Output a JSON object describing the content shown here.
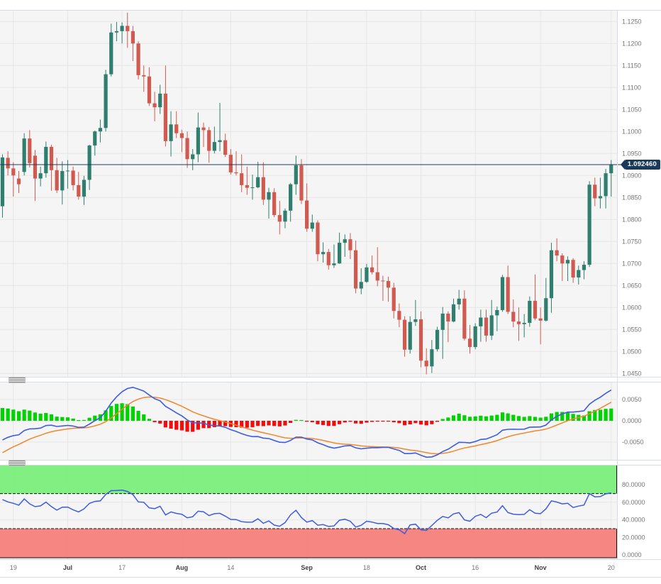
{
  "last_price_label": "1.092460",
  "colors": {
    "plot_bg": "#f5f5f5",
    "grid": "#e6e6e6",
    "panel_border": "#d8dce8",
    "candle_up": "#2f7e6e",
    "candle_down": "#d05a50",
    "price_line": "#1d3b59",
    "tag_bg": "#1b3a5a",
    "macd_line": "#3d5ce0",
    "signal_line": "#f2862c",
    "hist_up": "#00d300",
    "hist_down": "#f20c0c",
    "osc_line": "#3d5ce0",
    "band_green": "#76ee76",
    "band_red": "#f67a76",
    "band_border": "#111111",
    "axis_text": "#757575",
    "axis_text_major": "#3e3e3e",
    "bottom_rule": "#d9dadf"
  },
  "axis": {
    "price_ticks": [
      "1.1250",
      "1.1200",
      "1.1150",
      "1.1100",
      "1.1050",
      "1.1000",
      "1.0950",
      "1.0900",
      "1.0850",
      "1.0800",
      "1.0750",
      "1.0700",
      "1.0650",
      "1.0600",
      "1.0550",
      "1.0500",
      "1.0450"
    ],
    "macd_ticks": [
      "0.0050",
      "0.0000",
      "-0.0050"
    ],
    "osc_ticks": [
      "80.0000",
      "60.0000",
      "40.0000",
      "20.0000",
      "0.0000"
    ],
    "time_ticks": [
      {
        "i": 2,
        "label": "19",
        "major": false
      },
      {
        "i": 12,
        "label": "Jul",
        "major": true
      },
      {
        "i": 22,
        "label": "17",
        "major": false
      },
      {
        "i": 33,
        "label": "Aug",
        "major": true
      },
      {
        "i": 42,
        "label": "14",
        "major": false
      },
      {
        "i": 56,
        "label": "Sep",
        "major": true
      },
      {
        "i": 67,
        "label": "18",
        "major": false
      },
      {
        "i": 77,
        "label": "Oct",
        "major": true
      },
      {
        "i": 87,
        "label": "16",
        "major": false
      },
      {
        "i": 99,
        "label": "Nov",
        "major": true
      },
      {
        "i": 112,
        "label": "20",
        "major": false
      }
    ]
  },
  "chart_data": {
    "type": "candlestick",
    "last_price": 1.09246,
    "panels": [
      {
        "name": "price",
        "ylim": [
          1.0442,
          1.1275
        ],
        "grid_step": 0.005
      },
      {
        "name": "macd",
        "ylim": [
          -0.0093,
          0.0093
        ],
        "grid_step": 0.005
      },
      {
        "name": "oscillator",
        "ylim": [
          -3,
          102
        ],
        "grid_step": 20,
        "overbought": 70,
        "oversold": 30
      }
    ],
    "indicators": [
      {
        "type": "macd",
        "fast": 12,
        "slow": 26,
        "signal": 9
      },
      {
        "type": "rsi",
        "period": 14,
        "overbought": 70,
        "oversold": 30
      }
    ],
    "candles_ohlc": [
      [
        1.083,
        1.0948,
        1.0804,
        1.0941
      ],
      [
        1.094,
        1.0955,
        1.09,
        1.0916
      ],
      [
        1.0916,
        1.093,
        1.0852,
        1.09
      ],
      [
        1.0893,
        1.091,
        1.086,
        1.088
      ],
      [
        1.0908,
        1.0996,
        1.09,
        1.0984
      ],
      [
        1.0984,
        1.1003,
        1.0918,
        1.0928
      ],
      [
        1.0945,
        1.0958,
        1.0842,
        1.0893
      ],
      [
        1.0893,
        1.092,
        1.0875,
        1.0905
      ],
      [
        1.0905,
        1.0977,
        1.0895,
        1.0965
      ],
      [
        1.0965,
        1.097,
        1.0865,
        1.0912
      ],
      [
        1.0912,
        1.094,
        1.086,
        1.0866
      ],
      [
        1.0866,
        1.0932,
        1.0834,
        1.091
      ],
      [
        1.091,
        1.0935,
        1.087,
        1.0911
      ],
      [
        1.0911,
        1.092,
        1.0866,
        1.0878
      ],
      [
        1.0878,
        1.0908,
        1.0845,
        1.0852
      ],
      [
        1.0852,
        1.0899,
        1.0833,
        1.089
      ],
      [
        1.089,
        1.097,
        1.0867,
        1.0968
      ],
      [
        1.0968,
        1.1002,
        1.0945,
        1.1
      ],
      [
        1.1,
        1.1027,
        1.0975,
        1.1008
      ],
      [
        1.1008,
        1.114,
        1.1,
        1.113
      ],
      [
        1.113,
        1.1245,
        1.1125,
        1.1225
      ],
      [
        1.1225,
        1.1249,
        1.1205,
        1.1228
      ],
      [
        1.1228,
        1.1248,
        1.12,
        1.124
      ],
      [
        1.124,
        1.127,
        1.119,
        1.1228
      ],
      [
        1.1228,
        1.124,
        1.116,
        1.12
      ],
      [
        1.12,
        1.1205,
        1.1118,
        1.1128
      ],
      [
        1.1128,
        1.115,
        1.109,
        1.1125
      ],
      [
        1.1125,
        1.1146,
        1.1058,
        1.1064
      ],
      [
        1.1064,
        1.109,
        1.1023,
        1.1055
      ],
      [
        1.1055,
        1.1106,
        1.104,
        1.1086
      ],
      [
        1.1086,
        1.115,
        1.0966,
        1.0978
      ],
      [
        1.0978,
        1.1046,
        1.0943,
        1.1016
      ],
      [
        1.1016,
        1.1046,
        1.0985,
        1.0996
      ],
      [
        1.0996,
        1.1004,
        1.0953,
        1.0985
      ],
      [
        1.0985,
        1.1,
        1.0917,
        1.0937
      ],
      [
        1.0937,
        1.096,
        1.0912,
        1.0948
      ],
      [
        1.0948,
        1.1043,
        1.093,
        1.1009
      ],
      [
        1.1009,
        1.102,
        1.0965,
        1.1003
      ],
      [
        1.1003,
        1.101,
        1.0929,
        1.0956
      ],
      [
        1.0956,
        1.1011,
        1.095,
        1.0976
      ],
      [
        1.0976,
        1.1065,
        1.0955,
        1.098
      ],
      [
        1.098,
        1.0995,
        1.0942,
        1.0947
      ],
      [
        1.0947,
        1.096,
        1.0902,
        1.0907
      ],
      [
        1.0907,
        1.0955,
        1.09,
        1.0905
      ],
      [
        1.0905,
        1.0948,
        1.0862,
        1.0878
      ],
      [
        1.0878,
        1.092,
        1.0856,
        1.0872
      ],
      [
        1.0872,
        1.0902,
        1.0845,
        1.0873
      ],
      [
        1.0873,
        1.0931,
        1.0871,
        1.0896
      ],
      [
        1.0896,
        1.093,
        1.0833,
        1.0845
      ],
      [
        1.0845,
        1.0872,
        1.0802,
        1.0862
      ],
      [
        1.0862,
        1.0871,
        1.0805,
        1.081
      ],
      [
        1.081,
        1.0842,
        1.0766,
        1.0795
      ],
      [
        1.0795,
        1.0825,
        1.078,
        1.082
      ],
      [
        1.082,
        1.0883,
        1.0795,
        1.088
      ],
      [
        1.088,
        1.0945,
        1.0856,
        1.0923
      ],
      [
        1.0923,
        1.0937,
        1.0835,
        1.0843
      ],
      [
        1.0843,
        1.0882,
        1.0772,
        1.0779
      ],
      [
        1.0779,
        1.0811,
        1.0772,
        1.0793
      ],
      [
        1.0793,
        1.0798,
        1.0705,
        1.0721
      ],
      [
        1.0721,
        1.0748,
        1.0702,
        1.0726
      ],
      [
        1.0726,
        1.0733,
        1.0686,
        1.0696
      ],
      [
        1.0696,
        1.0743,
        1.069,
        1.07
      ],
      [
        1.07,
        1.077,
        1.0699,
        1.0747
      ],
      [
        1.0747,
        1.0766,
        1.0715,
        1.0755
      ],
      [
        1.0755,
        1.0769,
        1.071,
        1.073
      ],
      [
        1.073,
        1.0752,
        1.0632,
        1.0643
      ],
      [
        1.0643,
        1.0689,
        1.063,
        1.0658
      ],
      [
        1.0658,
        1.0699,
        1.0656,
        1.0691
      ],
      [
        1.0691,
        1.0718,
        1.0675,
        1.068
      ],
      [
        1.068,
        1.0737,
        1.0648,
        1.0661
      ],
      [
        1.0661,
        1.0672,
        1.0615,
        1.066
      ],
      [
        1.066,
        1.067,
        1.0613,
        1.0645
      ],
      [
        1.0645,
        1.0656,
        1.0575,
        1.0592
      ],
      [
        1.0592,
        1.0609,
        1.0555,
        1.0572
      ],
      [
        1.0572,
        1.058,
        1.0488,
        1.0504
      ],
      [
        1.0504,
        1.058,
        1.0495,
        1.0567
      ],
      [
        1.0567,
        1.0617,
        1.0558,
        1.0573
      ],
      [
        1.0573,
        1.0591,
        1.0464,
        1.0479
      ],
      [
        1.0479,
        1.0507,
        1.0448,
        1.0466
      ],
      [
        1.0466,
        1.0526,
        1.0451,
        1.0505
      ],
      [
        1.0505,
        1.0556,
        1.05,
        1.0549
      ],
      [
        1.0549,
        1.0601,
        1.0483,
        1.0586
      ],
      [
        1.0586,
        1.0591,
        1.0521,
        1.0568
      ],
      [
        1.0568,
        1.062,
        1.0566,
        1.0607
      ],
      [
        1.0607,
        1.064,
        1.0595,
        1.062
      ],
      [
        1.062,
        1.0639,
        1.0525,
        1.0529
      ],
      [
        1.0529,
        1.056,
        1.0495,
        1.051
      ],
      [
        1.051,
        1.0564,
        1.0505,
        1.0557
      ],
      [
        1.0557,
        1.0595,
        1.0522,
        1.0577
      ],
      [
        1.0577,
        1.0595,
        1.0522,
        1.0536
      ],
      [
        1.0536,
        1.0617,
        1.0526,
        1.0582
      ],
      [
        1.0582,
        1.0602,
        1.0546,
        1.0594
      ],
      [
        1.0594,
        1.0674,
        1.059,
        1.0669
      ],
      [
        1.0669,
        1.0695,
        1.0585,
        1.059
      ],
      [
        1.059,
        1.0618,
        1.0555,
        1.0568
      ],
      [
        1.0568,
        1.06,
        1.0524,
        1.0562
      ],
      [
        1.0562,
        1.0585,
        1.0532,
        1.0565
      ],
      [
        1.0565,
        1.0625,
        1.0556,
        1.0615
      ],
      [
        1.0615,
        1.0675,
        1.0571,
        1.0575
      ],
      [
        1.0575,
        1.06,
        1.0516,
        1.057
      ],
      [
        1.057,
        1.0667,
        1.0568,
        1.0621
      ],
      [
        1.0621,
        1.0747,
        1.0588,
        1.073
      ],
      [
        1.073,
        1.0757,
        1.0705,
        1.0718
      ],
      [
        1.0718,
        1.0723,
        1.066,
        1.07
      ],
      [
        1.07,
        1.0716,
        1.066,
        1.0708
      ],
      [
        1.0708,
        1.0712,
        1.0656,
        1.0668
      ],
      [
        1.0668,
        1.0695,
        1.0652,
        1.0685
      ],
      [
        1.0685,
        1.0705,
        1.0664,
        1.0697
      ],
      [
        1.0697,
        1.0887,
        1.0692,
        1.0879
      ],
      [
        1.0879,
        1.0895,
        1.083,
        1.0848
      ],
      [
        1.0848,
        1.0895,
        1.0825,
        1.0853
      ],
      [
        1.0853,
        1.0915,
        1.0825,
        1.0905
      ],
      [
        1.0905,
        1.0935,
        1.0852,
        1.0925
      ]
    ]
  }
}
